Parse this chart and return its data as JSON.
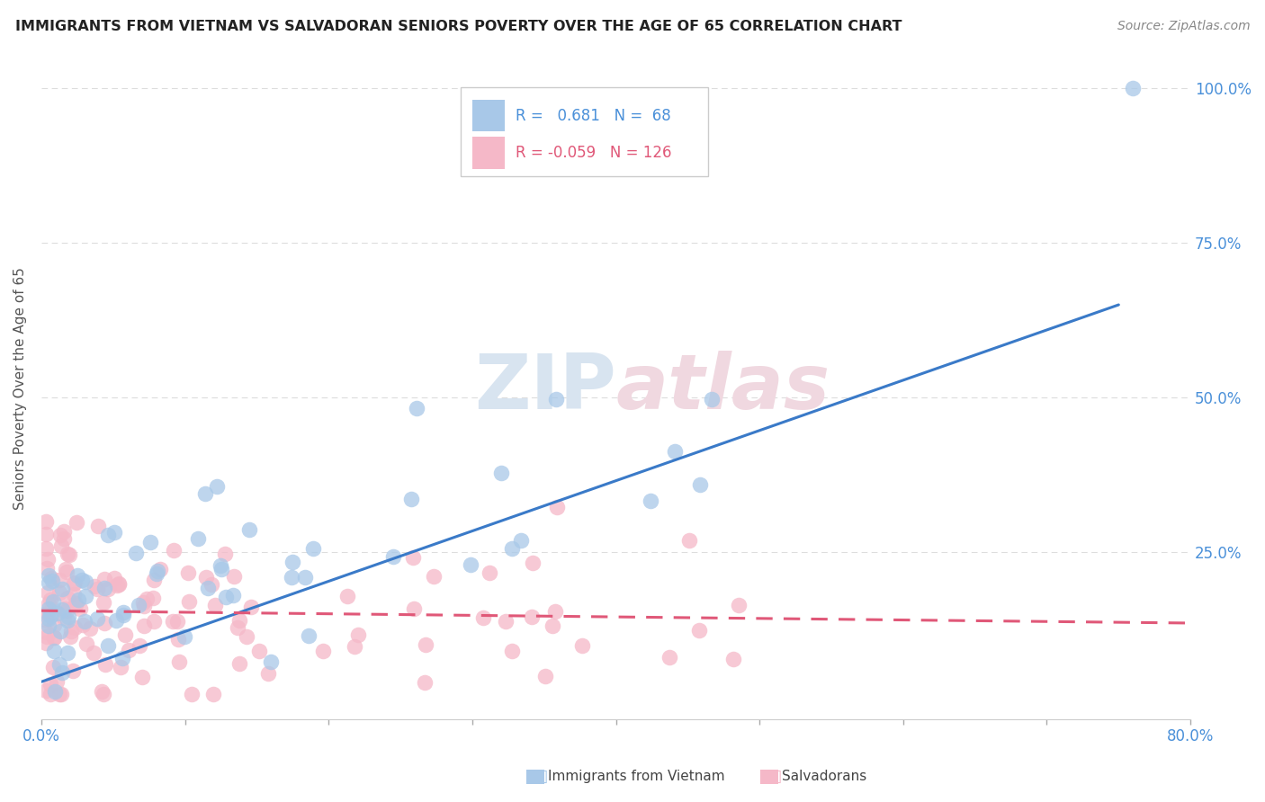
{
  "title": "IMMIGRANTS FROM VIETNAM VS SALVADORAN SENIORS POVERTY OVER THE AGE OF 65 CORRELATION CHART",
  "source": "Source: ZipAtlas.com",
  "ylabel": "Seniors Poverty Over the Age of 65",
  "xlim": [
    0.0,
    0.8
  ],
  "ylim": [
    -0.02,
    1.05
  ],
  "xtick_positions": [
    0.0,
    0.1,
    0.2,
    0.3,
    0.4,
    0.5,
    0.6,
    0.7,
    0.8
  ],
  "xticklabels": [
    "0.0%",
    "",
    "",
    "",
    "",
    "",
    "",
    "",
    "80.0%"
  ],
  "ytick_positions": [
    0.0,
    0.25,
    0.5,
    0.75,
    1.0
  ],
  "ytick_labels": [
    "",
    "25.0%",
    "50.0%",
    "75.0%",
    "100.0%"
  ],
  "r_vietnam": 0.681,
  "n_vietnam": 68,
  "r_salvadoran": -0.059,
  "n_salvadoran": 126,
  "color_vietnam": "#a8c8e8",
  "color_salvadoran": "#f5b8c8",
  "line_color_vietnam": "#3a7ac8",
  "line_color_salvadoran": "#e05878",
  "watermark_color": "#d8e4f0",
  "watermark_color2": "#f0d8e0",
  "background_color": "#ffffff",
  "viet_line_x0": 0.0,
  "viet_line_y0": 0.04,
  "viet_line_x1": 0.75,
  "viet_line_y1": 0.65,
  "salv_line_x0": 0.0,
  "salv_line_y0": 0.155,
  "salv_line_x1": 0.8,
  "salv_line_y1": 0.135,
  "grid_color": "#dddddd",
  "tick_color": "#aaaaaa",
  "axis_label_color": "#4a90d9",
  "ylabel_color": "#555555"
}
